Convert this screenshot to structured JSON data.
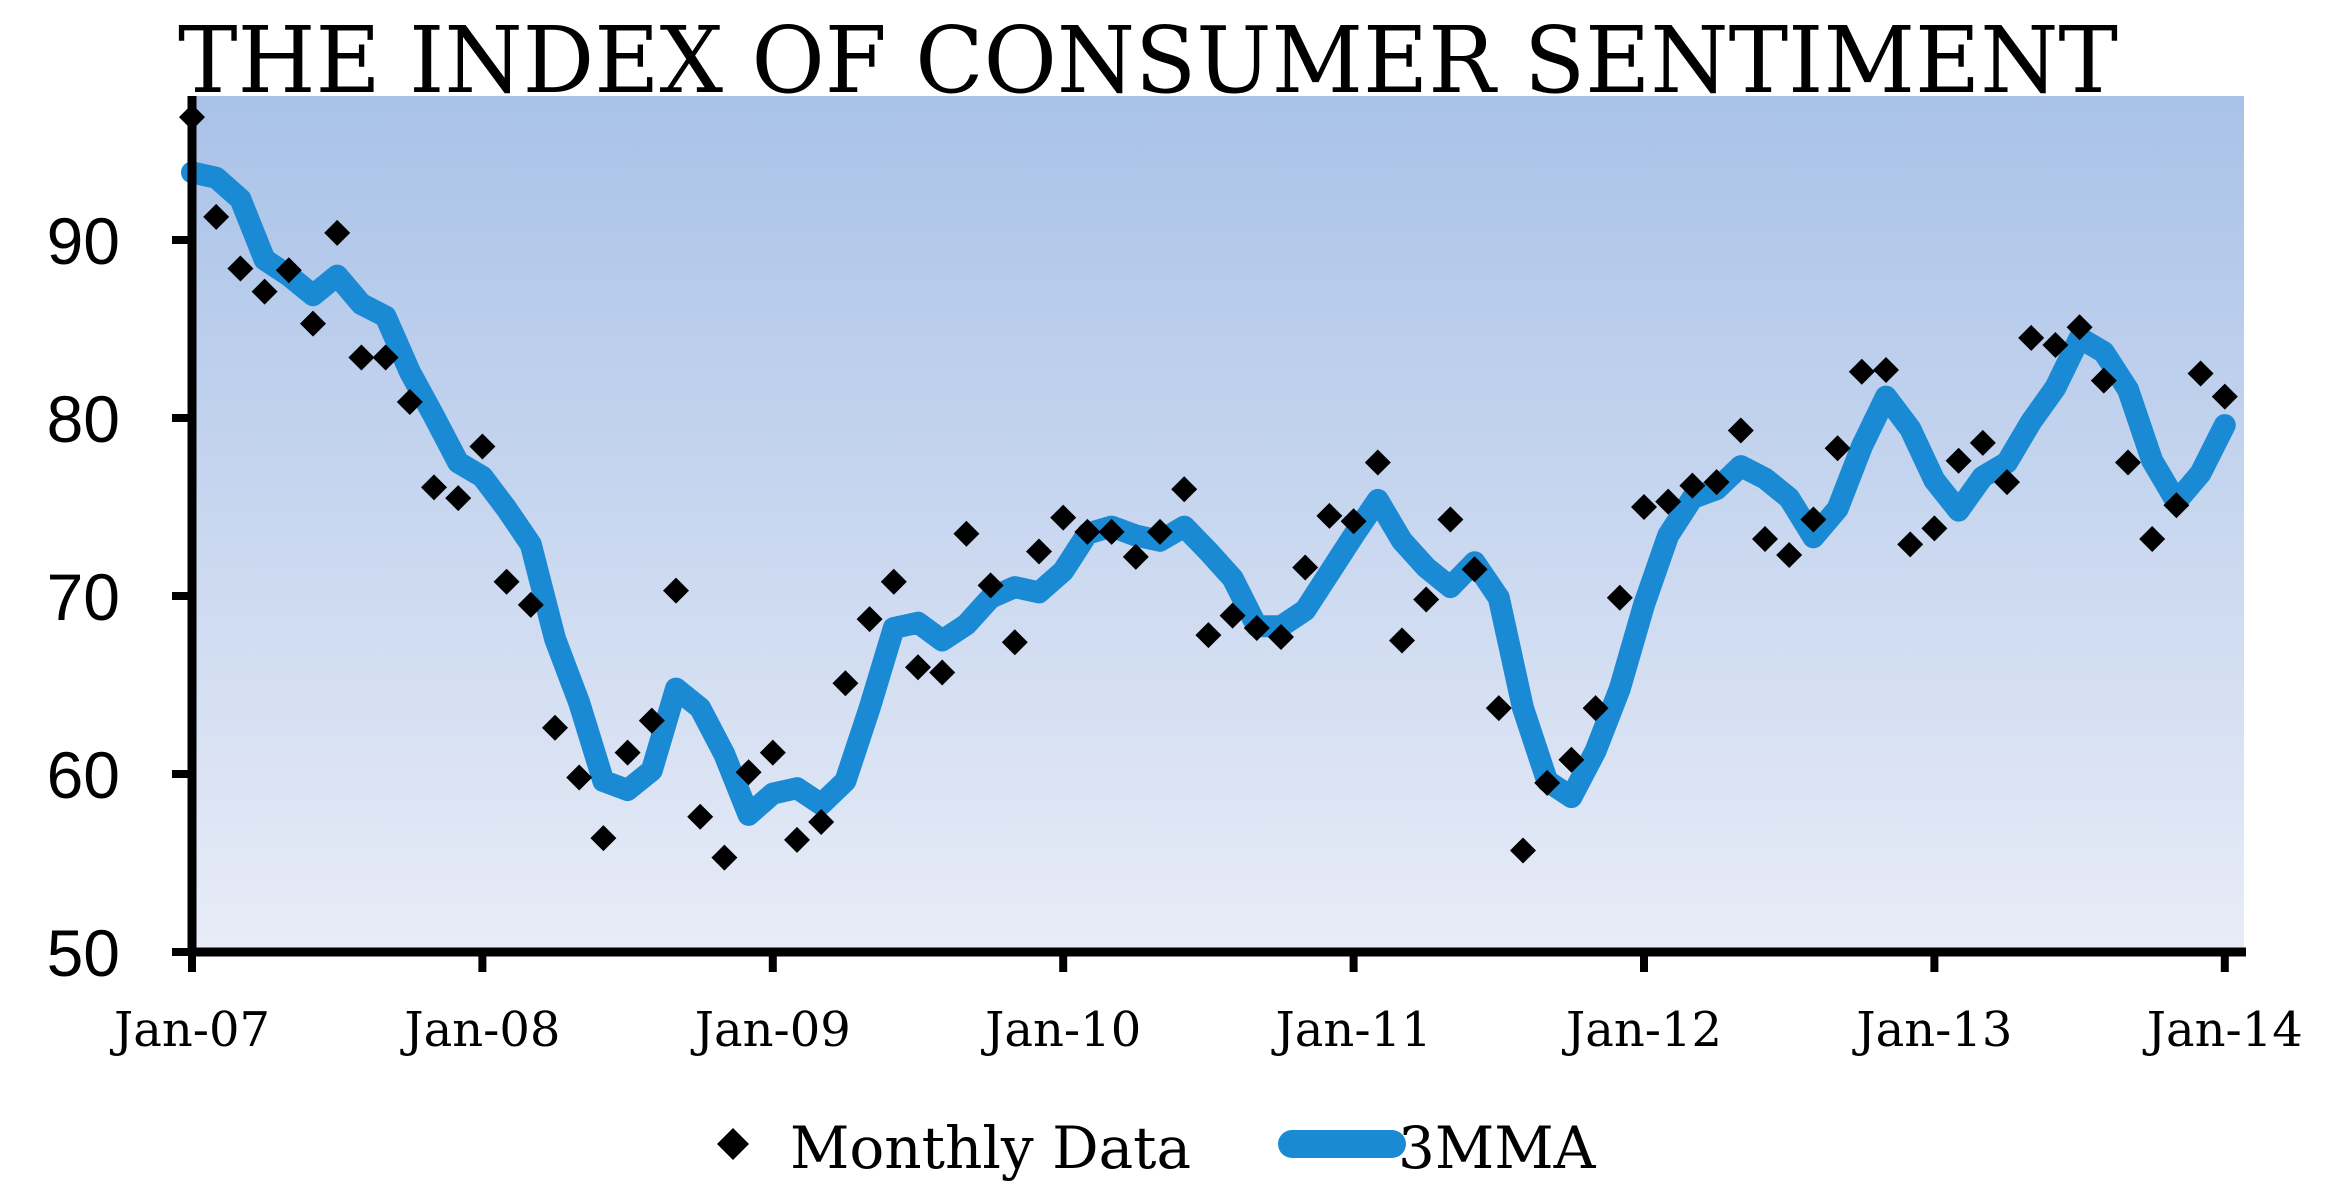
{
  "chart_data": {
    "type": "line",
    "title": "THE INDEX OF CONSUMER SENTIMENT",
    "xlabel": "",
    "ylabel": "",
    "ylim": [
      50,
      97
    ],
    "yticks": [
      "50",
      "60",
      "70",
      "80",
      "90"
    ],
    "xticks": [
      "Jan-07",
      "Jan-08",
      "Jan-09",
      "Jan-10",
      "Jan-11",
      "Jan-12",
      "Jan-13",
      "Jan-14"
    ],
    "grid": false,
    "legend": "bottom",
    "series": [
      {
        "name": "Monthly Data",
        "style": "markers",
        "marker": "diamond",
        "color": "#000000",
        "values": [
          96.9,
          91.3,
          88.4,
          87.1,
          88.3,
          85.3,
          90.4,
          83.4,
          83.4,
          80.9,
          76.1,
          75.5,
          78.4,
          70.8,
          69.5,
          62.6,
          59.8,
          56.4,
          61.2,
          63.0,
          70.3,
          57.6,
          55.3,
          60.1,
          61.2,
          56.3,
          57.3,
          65.1,
          68.7,
          70.8,
          66.0,
          65.7,
          73.5,
          70.6,
          67.4,
          72.5,
          74.4,
          73.6,
          73.6,
          72.2,
          73.6,
          76.0,
          67.8,
          68.9,
          68.2,
          67.7,
          71.6,
          74.5,
          74.2,
          77.5,
          67.5,
          69.8,
          74.3,
          71.5,
          63.7,
          55.7,
          59.5,
          60.8,
          63.7,
          69.9,
          75.0,
          75.3,
          76.2,
          76.4,
          79.3,
          73.2,
          72.3,
          74.3,
          78.3,
          82.6,
          82.7,
          72.9,
          73.8,
          77.6,
          78.6,
          76.4,
          84.5,
          84.1,
          85.1,
          82.1,
          77.5,
          73.2,
          75.1,
          82.5,
          81.2
        ]
      },
      {
        "name": "3MMA",
        "style": "line",
        "color": "#1a8ad4",
        "values": [
          93.8,
          93.5,
          92.3,
          88.9,
          88.0,
          86.9,
          88.0,
          86.4,
          85.7,
          82.6,
          80.1,
          77.5,
          76.7,
          74.9,
          72.9,
          67.6,
          64.0,
          59.6,
          59.1,
          60.2,
          64.8,
          63.7,
          61.1,
          57.7,
          58.9,
          59.2,
          58.3,
          59.6,
          63.7,
          68.2,
          68.5,
          67.5,
          68.4,
          69.9,
          70.5,
          70.2,
          71.4,
          73.5,
          73.9,
          73.4,
          73.1,
          73.9,
          72.5,
          71.0,
          68.3,
          68.3,
          69.2,
          71.3,
          73.4,
          75.4,
          73.1,
          71.6,
          70.5,
          71.9,
          69.9,
          63.7,
          59.6,
          58.7,
          61.3,
          64.8,
          69.5,
          73.4,
          75.5,
          76.0,
          77.3,
          76.6,
          75.5,
          73.3,
          74.9,
          78.4,
          81.2,
          79.4,
          76.5,
          74.8,
          76.7,
          77.5,
          79.8,
          81.7,
          84.5,
          83.7,
          81.6,
          77.6,
          75.3,
          76.9,
          79.6
        ]
      }
    ]
  }
}
